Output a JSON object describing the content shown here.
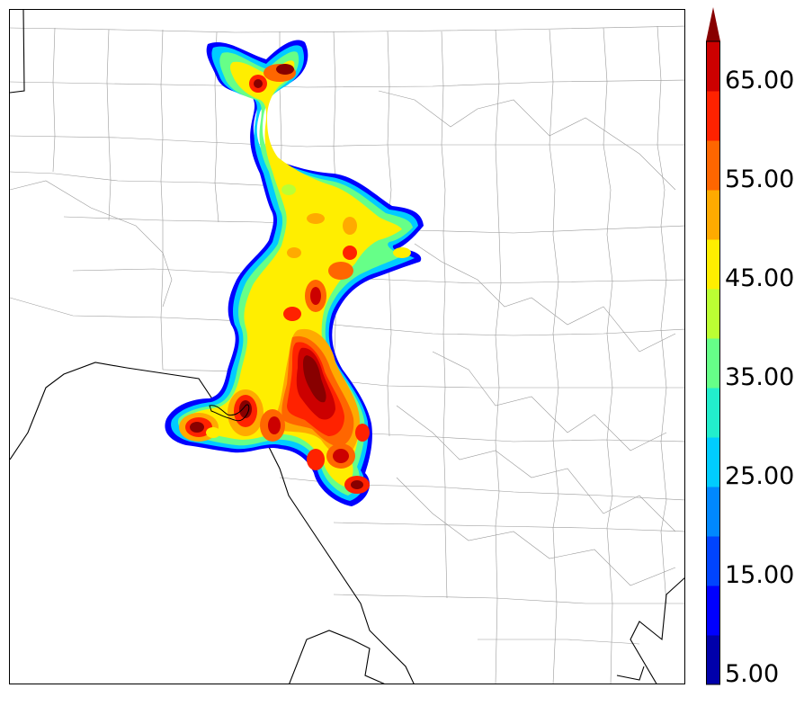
{
  "colorbar": {
    "labels": [
      "5.00",
      "15.00",
      "25.00",
      "35.00",
      "45.00",
      "55.00",
      "65.00"
    ],
    "colors": [
      "#0000aa",
      "#0000ff",
      "#0044ff",
      "#0088ff",
      "#00ccff",
      "#22eecc",
      "#66ff88",
      "#bbff33",
      "#ffee00",
      "#ffaa00",
      "#ff6600",
      "#ff2200",
      "#cc0000",
      "#880000"
    ],
    "extend": "max"
  }
}
